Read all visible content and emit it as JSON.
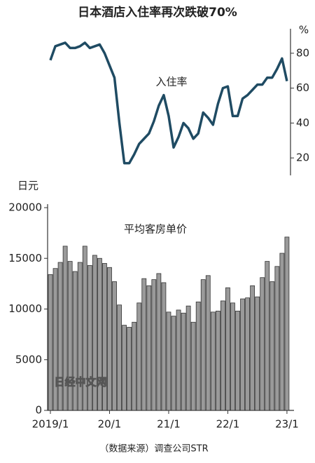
{
  "chart_data": {
    "type": "combo",
    "title": "日本酒店入住率再次跌破70%",
    "y_label": "日元",
    "y2_label": "%",
    "source": "（数据来源）调查公司STR",
    "watermark": "日经中文网",
    "categories": [
      "2019/1",
      null,
      null,
      null,
      null,
      null,
      null,
      null,
      null,
      null,
      null,
      null,
      "20/1",
      null,
      null,
      null,
      null,
      null,
      null,
      null,
      null,
      null,
      null,
      null,
      "21/1",
      null,
      null,
      null,
      null,
      null,
      null,
      null,
      null,
      null,
      null,
      null,
      "22/1",
      null,
      null,
      null,
      null,
      null,
      null,
      null,
      null,
      null,
      null,
      null,
      "23/1"
    ],
    "series": [
      {
        "name": "平均客房单价",
        "type": "bar",
        "color": "#9a9a9a",
        "values": [
          13400,
          14000,
          14600,
          16200,
          14700,
          13700,
          14600,
          16200,
          14300,
          15300,
          15000,
          14500,
          14100,
          12700,
          10400,
          8400,
          8200,
          8700,
          10600,
          13000,
          12300,
          12900,
          13500,
          12600,
          9700,
          9300,
          9900,
          9600,
          10300,
          8700,
          10700,
          12900,
          13300,
          9700,
          9800,
          10800,
          12100,
          10600,
          9800,
          11000,
          11100,
          12300,
          11200,
          13100,
          14700,
          12700,
          14200,
          15500,
          17100
        ]
      },
      {
        "name": "入住率",
        "type": "line",
        "axis": "y2",
        "color": "#1f4b63",
        "values": [
          76,
          84,
          85,
          86,
          83,
          83,
          84,
          86,
          83,
          84,
          85,
          80,
          73,
          66,
          40,
          17,
          17,
          22,
          28,
          31,
          34,
          41,
          50,
          56,
          44,
          26,
          32,
          40,
          37,
          31,
          34,
          46,
          43,
          39,
          51,
          60,
          61,
          44,
          44,
          54,
          56,
          59,
          62,
          62,
          66,
          66,
          71,
          77,
          64
        ]
      }
    ],
    "ylim": [
      0,
      20000
    ],
    "yticks": [
      0,
      5000,
      10000,
      15000,
      20000
    ],
    "y2lim": [
      10,
      90
    ],
    "y2ticks": [
      20,
      40,
      60,
      80
    ]
  }
}
